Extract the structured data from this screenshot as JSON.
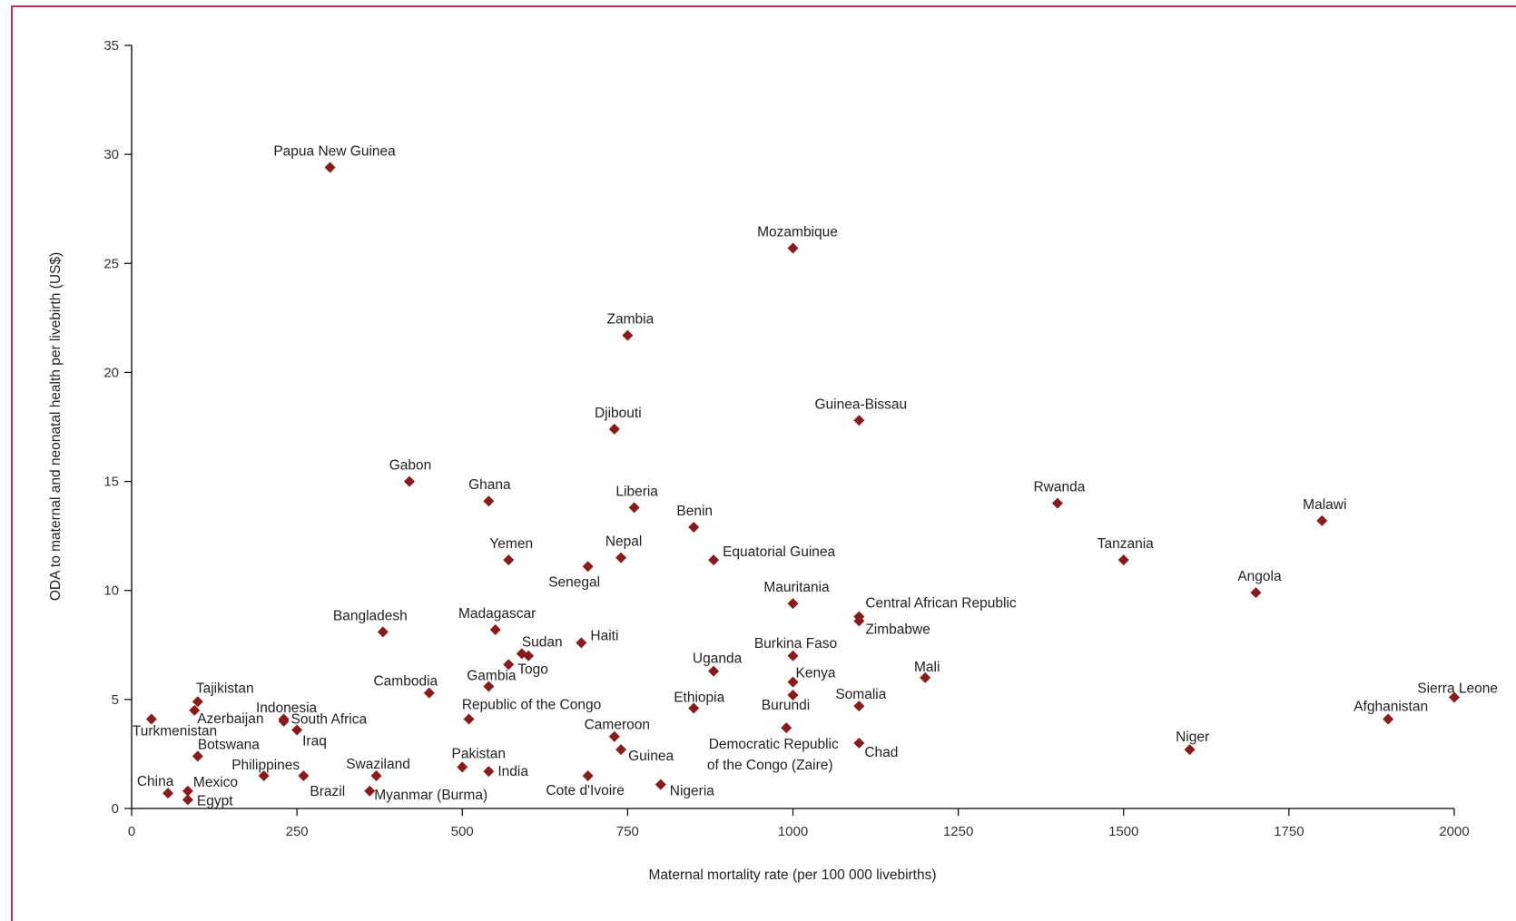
{
  "chart_data": {
    "type": "scatter",
    "title": "",
    "xlabel": "Maternal mortality rate (per 100 000 livebirths)",
    "ylabel": "ODA to maternal and neonatal health per livebirth (US$)",
    "xlim": [
      0,
      2000
    ],
    "ylim": [
      0,
      35
    ],
    "xticks": [
      0,
      250,
      500,
      750,
      1000,
      1250,
      1500,
      1750,
      2000
    ],
    "yticks": [
      0,
      5,
      10,
      15,
      20,
      25,
      30,
      35
    ],
    "grid": false,
    "marker_color": "#8b1a1a",
    "points": [
      {
        "label": "Papua New Guinea",
        "x": 300,
        "y": 29.4,
        "anchor": "middle",
        "dx": 5,
        "dy": -13
      },
      {
        "label": "Mozambique",
        "x": 1000,
        "y": 25.7,
        "anchor": "middle",
        "dx": 5,
        "dy": -13
      },
      {
        "label": "Zambia",
        "x": 750,
        "y": 21.7,
        "anchor": "middle",
        "dx": 3,
        "dy": -13
      },
      {
        "label": "Djibouti",
        "x": 730,
        "y": 17.4,
        "anchor": "middle",
        "dx": 4,
        "dy": -13
      },
      {
        "label": "Guinea-Bissau",
        "x": 1100,
        "y": 17.8,
        "anchor": "middle",
        "dx": 2,
        "dy": -13
      },
      {
        "label": "Gabon",
        "x": 420,
        "y": 15.0,
        "anchor": "middle",
        "dx": 1,
        "dy": -13
      },
      {
        "label": "Ghana",
        "x": 540,
        "y": 14.1,
        "anchor": "middle",
        "dx": 1,
        "dy": -13
      },
      {
        "label": "Liberia",
        "x": 760,
        "y": 13.8,
        "anchor": "middle",
        "dx": 3,
        "dy": -13
      },
      {
        "label": "Benin",
        "x": 850,
        "y": 12.9,
        "anchor": "middle",
        "dx": 1,
        "dy": -13
      },
      {
        "label": "Rwanda",
        "x": 1400,
        "y": 14.0,
        "anchor": "middle",
        "dx": 2,
        "dy": -13
      },
      {
        "label": "Malawi",
        "x": 1800,
        "y": 13.2,
        "anchor": "middle",
        "dx": 3,
        "dy": -13
      },
      {
        "label": "Yemen",
        "x": 570,
        "y": 11.4,
        "anchor": "middle",
        "dx": 3,
        "dy": -13
      },
      {
        "label": "Nepal",
        "x": 740,
        "y": 11.5,
        "anchor": "middle",
        "dx": 3,
        "dy": -13
      },
      {
        "label": "Equatorial Guinea",
        "x": 880,
        "y": 11.4,
        "anchor": "start",
        "dx": 10,
        "dy": -4
      },
      {
        "label": "Tanzania",
        "x": 1500,
        "y": 11.4,
        "anchor": "middle",
        "dx": 2,
        "dy": -13
      },
      {
        "label": "Senegal",
        "x": 690,
        "y": 11.1,
        "anchor": "middle",
        "dx": -15,
        "dy": 22
      },
      {
        "label": "Angola",
        "x": 1700,
        "y": 9.9,
        "anchor": "middle",
        "dx": 4,
        "dy": -13
      },
      {
        "label": "Mauritania",
        "x": 1000,
        "y": 9.4,
        "anchor": "middle",
        "dx": 4,
        "dy": -13
      },
      {
        "label": "Central African Republic",
        "x": 1100,
        "y": 8.8,
        "anchor": "start",
        "dx": 7,
        "dy": -10
      },
      {
        "label": "Zimbabwe",
        "x": 1100,
        "y": 8.6,
        "anchor": "start",
        "dx": 7,
        "dy": 14
      },
      {
        "label": "Bangladesh",
        "x": 380,
        "y": 8.1,
        "anchor": "middle",
        "dx": -14,
        "dy": -13
      },
      {
        "label": "Madagascar",
        "x": 550,
        "y": 8.2,
        "anchor": "middle",
        "dx": 2,
        "dy": -13
      },
      {
        "label": "Haiti",
        "x": 680,
        "y": 7.6,
        "anchor": "start",
        "dx": 10,
        "dy": -3
      },
      {
        "label": "Sudan",
        "x": 590,
        "y": 7.1,
        "anchor": "start",
        "dx": 0,
        "dy": -8
      },
      {
        "label": "Burkina Faso",
        "x": 1000,
        "y": 7.0,
        "anchor": "middle",
        "dx": 3,
        "dy": -9
      },
      {
        "label": "Uganda",
        "x": 880,
        "y": 6.3,
        "anchor": "middle",
        "dx": 4,
        "dy": -9
      },
      {
        "label": "Togo",
        "x": 570,
        "y": 6.6,
        "anchor": "start",
        "dx": 10,
        "dy": 10
      },
      {
        "label": "Gambia",
        "x": 540,
        "y": 5.6,
        "anchor": "middle",
        "dx": 3,
        "dy": -7
      },
      {
        "label": "Mali",
        "x": 1200,
        "y": 6.0,
        "anchor": "middle",
        "dx": 2,
        "dy": -7
      },
      {
        "label": "Kenya",
        "x": 1000,
        "y": 5.8,
        "anchor": "start",
        "dx": 3,
        "dy": -5
      },
      {
        "label": "Cambodia",
        "x": 450,
        "y": 5.3,
        "anchor": "middle",
        "dx": -26,
        "dy": -8
      },
      {
        "label": "Sierra Leone",
        "x": 2000,
        "y": 5.1,
        "anchor": "end",
        "dx": 48,
        "dy": -5
      },
      {
        "label": "Somalia",
        "x": 1100,
        "y": 4.7,
        "anchor": "middle",
        "dx": 2,
        "dy": -8
      },
      {
        "label": "Ethiopia",
        "x": 850,
        "y": 4.6,
        "anchor": "middle",
        "dx": 6,
        "dy": -7
      },
      {
        "label": "Burundi",
        "x": 1000,
        "y": 5.2,
        "anchor": "middle",
        "dx": -8,
        "dy": 16
      },
      {
        "label": "Tajikistan",
        "x": 100,
        "y": 4.9,
        "anchor": "start",
        "dx": -2,
        "dy": -10
      },
      {
        "label": "Indonesia",
        "x": 230,
        "y": 4.0,
        "anchor": "middle",
        "dx": 3,
        "dy": -10
      },
      {
        "label": "Azerbaijan",
        "x": 95,
        "y": 4.5,
        "anchor": "start",
        "dx": 3,
        "dy": 14
      },
      {
        "label": "South Africa",
        "x": 230,
        "y": 4.1,
        "anchor": "start",
        "dx": 8,
        "dy": 5
      },
      {
        "label": "Republic of the Congo",
        "x": 510,
        "y": 4.1,
        "anchor": "middle",
        "dx": 69,
        "dy": -11
      },
      {
        "label": "Afghanistan",
        "x": 1900,
        "y": 4.1,
        "anchor": "middle",
        "dx": 3,
        "dy": -9
      },
      {
        "label": "Turkmenistan",
        "x": 30,
        "y": 4.1,
        "anchor": "start",
        "dx": -21,
        "dy": 18
      },
      {
        "label": "Iraq",
        "x": 250,
        "y": 3.6,
        "anchor": "start",
        "dx": 6,
        "dy": 17
      },
      {
        "label": "Cameroon",
        "x": 730,
        "y": 3.3,
        "anchor": "middle",
        "dx": 3,
        "dy": -8
      },
      {
        "label": "Democratic Republic",
        "x": 990,
        "y": 3.7,
        "anchor": "middle",
        "dx": -14,
        "dy": 23
      },
      {
        "label": "of the Congo (Zaire)",
        "x": 990,
        "y": 3.7,
        "anchor": "middle",
        "dx": -18,
        "dy": 46
      },
      {
        "label": "Niger",
        "x": 1600,
        "y": 2.7,
        "anchor": "middle",
        "dx": 3,
        "dy": -9
      },
      {
        "label": "Chad",
        "x": 1100,
        "y": 3.0,
        "anchor": "start",
        "dx": 6,
        "dy": 15
      },
      {
        "label": "Botswana",
        "x": 100,
        "y": 2.4,
        "anchor": "start",
        "dx": 0,
        "dy": -8
      },
      {
        "label": "Guinea",
        "x": 740,
        "y": 2.7,
        "anchor": "start",
        "dx": 8,
        "dy": 12
      },
      {
        "label": "Swaziland",
        "x": 370,
        "y": 1.5,
        "anchor": "middle",
        "dx": 2,
        "dy": -8
      },
      {
        "label": "Pakistan",
        "x": 500,
        "y": 1.9,
        "anchor": "middle",
        "dx": 18,
        "dy": -10
      },
      {
        "label": "India",
        "x": 540,
        "y": 1.7,
        "anchor": "start",
        "dx": 10,
        "dy": 5
      },
      {
        "label": "Philippines",
        "x": 200,
        "y": 1.5,
        "anchor": "middle",
        "dx": 2,
        "dy": -7
      },
      {
        "label": "Nigeria",
        "x": 800,
        "y": 1.1,
        "anchor": "start",
        "dx": 10,
        "dy": 12
      },
      {
        "label": "China",
        "x": 55,
        "y": 0.7,
        "anchor": "middle",
        "dx": -14,
        "dy": -8
      },
      {
        "label": "Mexico",
        "x": 85,
        "y": 0.8,
        "anchor": "start",
        "dx": 6,
        "dy": -5
      },
      {
        "label": "Egypt",
        "x": 85,
        "y": 0.4,
        "anchor": "start",
        "dx": 10,
        "dy": 6
      },
      {
        "label": "Brazil",
        "x": 260,
        "y": 1.5,
        "anchor": "start",
        "dx": 7,
        "dy": 22
      },
      {
        "label": "Myanmar (Burma)",
        "x": 360,
        "y": 0.8,
        "anchor": "start",
        "dx": 5,
        "dy": 9
      },
      {
        "label": "Cote d'Ivoire",
        "x": 690,
        "y": 1.5,
        "anchor": "middle",
        "dx": -3,
        "dy": 21
      }
    ],
    "unlabeled_points": [
      {
        "x": 85,
        "y": 0.4
      },
      {
        "x": 600,
        "y": 7.0
      }
    ]
  }
}
